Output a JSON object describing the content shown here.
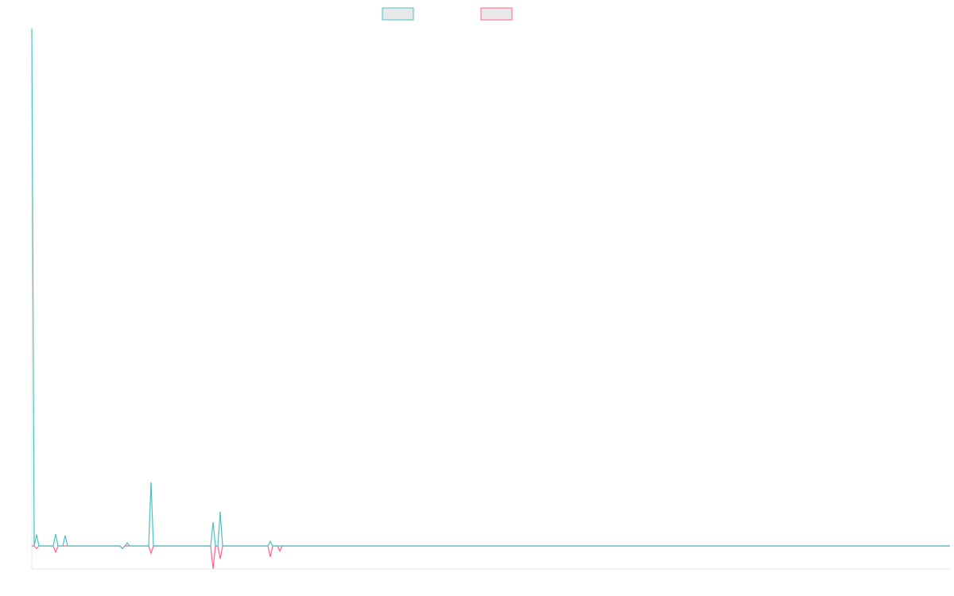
{
  "chart_data": {
    "type": "line",
    "x": [
      0,
      1,
      2,
      3,
      9,
      10,
      11,
      13,
      14,
      15,
      37,
      38,
      39,
      40,
      41,
      49,
      50,
      51,
      75,
      76,
      77,
      78,
      79,
      80,
      99,
      100,
      101,
      103,
      104,
      105,
      385
    ],
    "series": [
      {
        "color": "#4bc0c0",
        "values": [
          100,
          0,
          2.2,
          0,
          0,
          2.3,
          0,
          0,
          2.0,
          0,
          0,
          -0.5,
          0,
          0.6,
          0,
          0,
          12.3,
          0,
          0,
          4.6,
          0,
          0,
          6.6,
          0,
          0,
          0.9,
          0,
          0,
          0,
          0,
          0
        ]
      },
      {
        "color": "#ff6384",
        "values": [
          0,
          0,
          -0.5,
          0,
          0,
          -1.2,
          0,
          0,
          0,
          0,
          0,
          -0.5,
          0,
          0,
          0,
          0,
          -1.4,
          0,
          0,
          -4.4,
          0,
          0,
          -2.5,
          0,
          0,
          -2.1,
          0,
          0,
          -1,
          0,
          0
        ]
      }
    ],
    "xlim": [
      0,
      385
    ],
    "ylim": [
      -4.45,
      100
    ]
  }
}
